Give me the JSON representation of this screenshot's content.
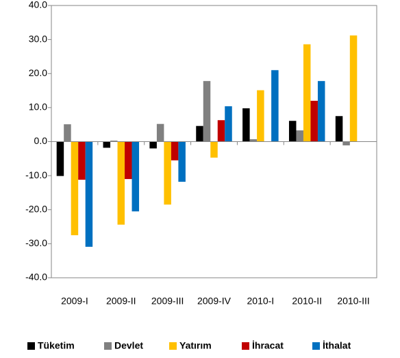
{
  "chart_data": {
    "type": "bar",
    "categories": [
      "2009-I",
      "2009-II",
      "2009-III",
      "2009-IV",
      "2010-I",
      "2010-II",
      "2010-III"
    ],
    "series": [
      {
        "name": "Tüketim",
        "color": "#000000",
        "values": [
          -10.1,
          -1.8,
          -2.0,
          4.6,
          9.8,
          6.1,
          7.5
        ]
      },
      {
        "name": "Devlet",
        "color": "#808080",
        "values": [
          5.1,
          0.3,
          5.2,
          17.8,
          0.7,
          3.3,
          -1.1
        ]
      },
      {
        "name": "Yatırım",
        "color": "#ffc000",
        "values": [
          -27.5,
          -24.4,
          -18.5,
          -4.7,
          15.1,
          28.6,
          31.2
        ]
      },
      {
        "name": "İhracat",
        "color": "#c00000",
        "values": [
          -11.2,
          -11.0,
          -5.5,
          6.3,
          null,
          12.0,
          null
        ]
      },
      {
        "name": "İthalat",
        "color": "#0070c0",
        "values": [
          -30.9,
          -20.5,
          -11.8,
          10.4,
          21.0,
          17.8,
          null
        ]
      }
    ],
    "ylim": [
      -40,
      40
    ],
    "yticks": [
      {
        "value": -40,
        "label": "-40.0"
      },
      {
        "value": -30,
        "label": "-30.0"
      },
      {
        "value": -20,
        "label": "-20.0"
      },
      {
        "value": -10,
        "label": "-10.0"
      },
      {
        "value": 0,
        "label": "0.0"
      },
      {
        "value": 10,
        "label": "10.0"
      },
      {
        "value": 20,
        "label": "20.0"
      },
      {
        "value": 30,
        "label": "30.0"
      },
      {
        "value": 40,
        "label": "40.0"
      }
    ],
    "grid": false,
    "legend": "bottom"
  }
}
